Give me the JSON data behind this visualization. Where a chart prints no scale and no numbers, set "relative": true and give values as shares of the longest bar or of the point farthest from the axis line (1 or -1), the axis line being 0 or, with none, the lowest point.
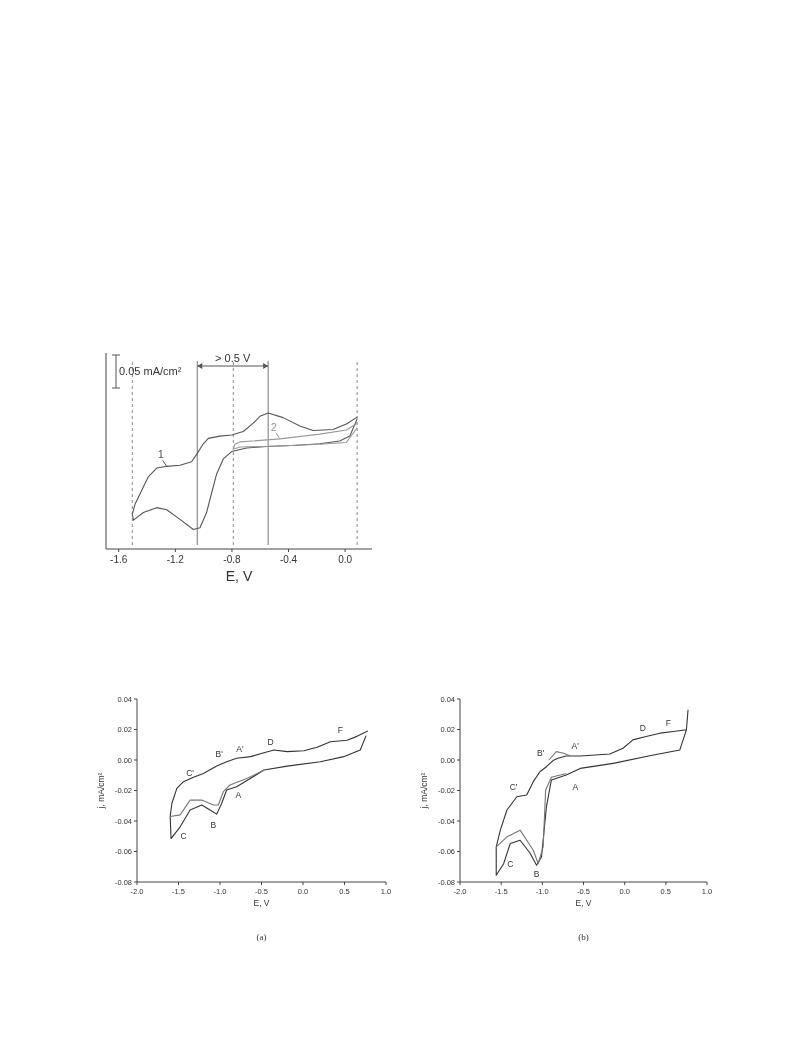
{
  "chart_data": [
    {
      "type": "line",
      "relative": true,
      "xlabel": "E, V",
      "xlim": [
        -1.69,
        0.19
      ],
      "xticks": [
        -1.6,
        -1.2,
        -0.8,
        -0.4,
        {
          "value": 0,
          "label": "0.0"
        }
      ],
      "series": [
        {
          "name": "1",
          "color": "#555555",
          "x": [
            0.085,
            0.009,
            -0.085,
            -0.226,
            -0.32,
            -0.438,
            -0.544,
            -0.602,
            -0.649,
            -0.72,
            -0.802,
            -0.885,
            -0.967,
            -1.002,
            -1.045,
            -1.085,
            -1.167,
            -1.261,
            -1.332,
            -1.391,
            -1.438,
            -1.485,
            -1.504,
            -1.496,
            -1.426,
            -1.332,
            -1.261,
            -1.167,
            -1.073,
            -1.026,
            -0.979,
            -0.944,
            -0.908,
            -0.861,
            -0.802,
            -0.696,
            -0.555,
            -0.344,
            -0.179,
            -0.038,
            0.033,
            0.085
          ],
          "values": [
            0.969,
            0.917,
            0.875,
            0.867,
            0.902,
            0.965,
            1.0,
            0.975,
            0.923,
            0.86,
            0.833,
            0.825,
            0.808,
            0.767,
            0.694,
            0.631,
            0.604,
            0.596,
            0.583,
            0.517,
            0.413,
            0.308,
            0.235,
            0.188,
            0.246,
            0.283,
            0.267,
            0.194,
            0.117,
            0.131,
            0.246,
            0.392,
            0.538,
            0.652,
            0.708,
            0.735,
            0.746,
            0.756,
            0.767,
            0.788,
            0.825,
            0.954
          ]
        },
        {
          "name": "2",
          "color": "#999999",
          "x": [
            0.085,
            0.009,
            -0.179,
            -0.461,
            -0.744,
            -0.779,
            -0.791,
            -0.744,
            -0.461,
            -0.179,
            0.009,
            0.085
          ],
          "values": [
            0.923,
            0.871,
            0.84,
            0.804,
            0.781,
            0.763,
            0.725,
            0.742,
            0.75,
            0.763,
            0.777,
            0.888
          ]
        }
      ],
      "ref_lines": [
        {
          "axis": "x",
          "value": -1.504,
          "line_style": "dashed",
          "color": "#888888"
        },
        {
          "axis": "x",
          "value": -0.79,
          "line_style": "dashed",
          "color": "#888888"
        },
        {
          "axis": "x",
          "value": 0.085,
          "line_style": "dashed",
          "color": "#888888"
        },
        {
          "axis": "x",
          "value": -1.045,
          "line_style": "solid",
          "color": "#777777"
        },
        {
          "axis": "x",
          "value": -0.544,
          "line_style": "solid",
          "color": "#777777"
        }
      ],
      "annotations": [
        "0.05 mA/cm²",
        "> 0.5 V"
      ]
    },
    {
      "type": "line",
      "xlabel": "E, V",
      "ylabel": "j, mA/cm²",
      "xlim": [
        -2,
        1
      ],
      "ylim": [
        -0.08,
        0.04
      ],
      "xticks": [
        {
          "value": -2,
          "label": "-2.0"
        },
        {
          "value": -1.5,
          "label": "-1.5"
        },
        {
          "value": -1,
          "label": "-1.0"
        },
        {
          "value": -0.5,
          "label": "-0.5"
        },
        {
          "value": 0,
          "label": "0.0"
        },
        {
          "value": 0.5,
          "label": "0.5"
        },
        {
          "value": 1,
          "label": "1.0"
        }
      ],
      "yticks": [
        {
          "value": -0.08,
          "label": "-0.08"
        },
        {
          "value": -0.06,
          "label": "-0.06"
        },
        {
          "value": -0.04,
          "label": "-0.04"
        },
        {
          "value": -0.02,
          "label": "-0.02"
        },
        {
          "value": 0,
          "label": "0.00"
        },
        {
          "value": 0.02,
          "label": "0.02"
        },
        {
          "value": 0.04,
          "label": "0.04"
        }
      ],
      "series": [
        {
          "color": "#333333",
          "x": [
            0.78,
            0.65,
            0.53,
            0.33,
            0.17,
            0.01,
            -0.19,
            -0.35,
            -0.47,
            -0.63,
            -0.8,
            -0.92,
            -1.04,
            -1.2,
            -1.32,
            -1.44,
            -1.52,
            -1.58,
            -1.6,
            -1.59,
            -1.48,
            -1.36,
            -1.22,
            -1.12,
            -1.04,
            -0.98,
            -0.92,
            -0.8,
            -0.63,
            -0.47,
            -0.19,
            0.21,
            0.49,
            0.69,
            0.76
          ],
          "values": [
            0.019,
            0.0155,
            0.013,
            0.012,
            0.0084,
            0.0061,
            0.0055,
            0.0066,
            0.0048,
            0.0022,
            0.0011,
            -0.0011,
            -0.004,
            -0.0088,
            -0.0113,
            -0.0142,
            -0.0186,
            -0.0285,
            -0.037,
            -0.0515,
            -0.0438,
            -0.0328,
            -0.0295,
            -0.0328,
            -0.0355,
            -0.0285,
            -0.0197,
            -0.0175,
            -0.012,
            -0.0066,
            -0.004,
            -0.0011,
            0.0022,
            0.0066,
            0.016
          ]
        },
        {
          "color": "#777777",
          "x": [
            -1.6,
            -1.48,
            -1.36,
            -1.22,
            -1.08,
            -1.02,
            -0.96,
            -0.88,
            -0.67,
            -0.47
          ],
          "values": [
            -0.037,
            -0.036,
            -0.0263,
            -0.0263,
            -0.0295,
            -0.0295,
            -0.0208,
            -0.0164,
            -0.012,
            -0.0066
          ]
        }
      ],
      "annotations": [
        "A",
        "A'",
        "B",
        "B'",
        "C",
        "C'",
        "D",
        "F",
        "(a)"
      ]
    },
    {
      "type": "line",
      "xlabel": "E, V",
      "ylabel": "j, mA/cm²",
      "xlim": [
        -2,
        1
      ],
      "ylim": [
        -0.08,
        0.04
      ],
      "xticks": [
        {
          "value": -2,
          "label": "-2.0"
        },
        {
          "value": -1.5,
          "label": "-1.5"
        },
        {
          "value": -1,
          "label": "-1.0"
        },
        {
          "value": -0.5,
          "label": "-0.5"
        },
        {
          "value": 0,
          "label": "0.0"
        },
        {
          "value": 0.5,
          "label": "0.5"
        },
        {
          "value": 1,
          "label": "1.0"
        }
      ],
      "yticks": [
        {
          "value": -0.08,
          "label": "-0.08"
        },
        {
          "value": -0.06,
          "label": "-0.06"
        },
        {
          "value": -0.04,
          "label": "-0.04"
        },
        {
          "value": -0.02,
          "label": "-0.02"
        },
        {
          "value": 0,
          "label": "0.00"
        },
        {
          "value": 0.02,
          "label": "0.02"
        },
        {
          "value": 0.04,
          "label": "0.04"
        }
      ],
      "series": [
        {
          "color": "#333333",
          "x": [
            0.77,
            0.75,
            0.59,
            0.43,
            0.26,
            0.1,
            -0.02,
            -0.18,
            -0.54,
            -0.71,
            -0.81,
            -0.87,
            -0.95,
            -1.03,
            -1.11,
            -1.19,
            -1.31,
            -1.43,
            -1.51,
            -1.56,
            -1.56,
            -1.47,
            -1.39,
            -1.27,
            -1.15,
            -1.07,
            -1.01,
            -0.95,
            -0.89,
            -0.71,
            -0.54,
            -0.14,
            0.35,
            0.67,
            0.75
          ],
          "values": [
            0.033,
            0.0198,
            0.0187,
            0.0176,
            0.0154,
            0.0132,
            0.0077,
            0.0039,
            0.0026,
            0.0026,
            0.0011,
            -0.0004,
            -0.0044,
            -0.0077,
            -0.0142,
            -0.023,
            -0.0241,
            -0.0328,
            -0.046,
            -0.057,
            -0.0756,
            -0.068,
            -0.0548,
            -0.0526,
            -0.061,
            -0.069,
            -0.0636,
            -0.0306,
            -0.0131,
            -0.0099,
            -0.0055,
            -0.0022,
            0.0033,
            0.0066,
            0.0198
          ]
        },
        {
          "color": "#777777",
          "x": [
            -1.56,
            -1.43,
            -1.27,
            -1.11,
            -1.05,
            -0.99,
            -0.96,
            -0.89,
            -0.71
          ],
          "values": [
            -0.057,
            -0.0504,
            -0.046,
            -0.0592,
            -0.068,
            -0.057,
            -0.0197,
            -0.0113,
            -0.0088
          ]
        },
        {
          "color": "#777777",
          "x": [
            -0.92,
            -0.83,
            -0.74,
            -0.66
          ],
          "values": [
            0,
            0.0055,
            0.0044,
            0.0026
          ]
        }
      ],
      "annotations": [
        "A",
        "A'",
        "B",
        "B'",
        "C",
        "C'",
        "D",
        "F",
        "(b)"
      ]
    }
  ]
}
